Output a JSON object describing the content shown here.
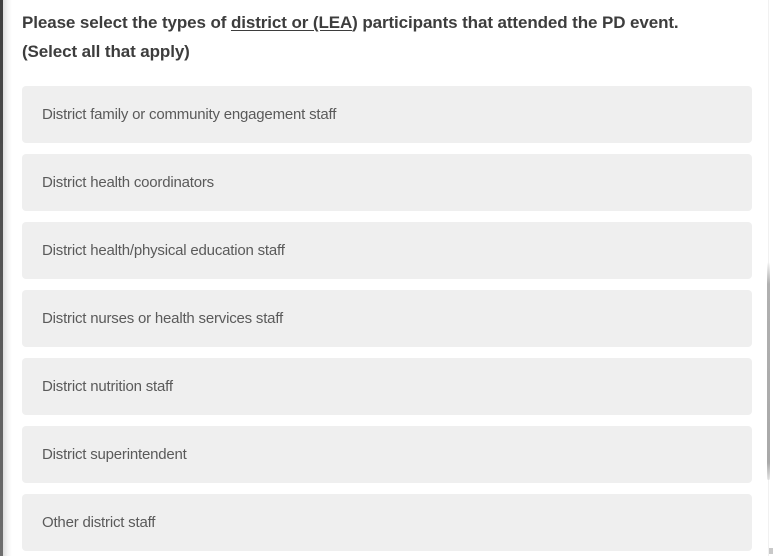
{
  "question": {
    "prefix": "Please select the types of ",
    "underlined": "district or (LEA",
    "suffix": ") participants that attended the PD event. (Select all that apply)"
  },
  "options": [
    "District family or community engagement staff",
    "District health coordinators",
    "District health/physical education staff",
    "District nurses or health services staff",
    "District nutrition staff",
    "District superintendent",
    "Other district staff"
  ],
  "colors": {
    "option_background": "#efefef",
    "option_text": "#5a5a5a",
    "question_text": "#3d3d3d",
    "scrollbar_thumb": "#aaaaaa",
    "window_edge": "#3f3f3f"
  }
}
